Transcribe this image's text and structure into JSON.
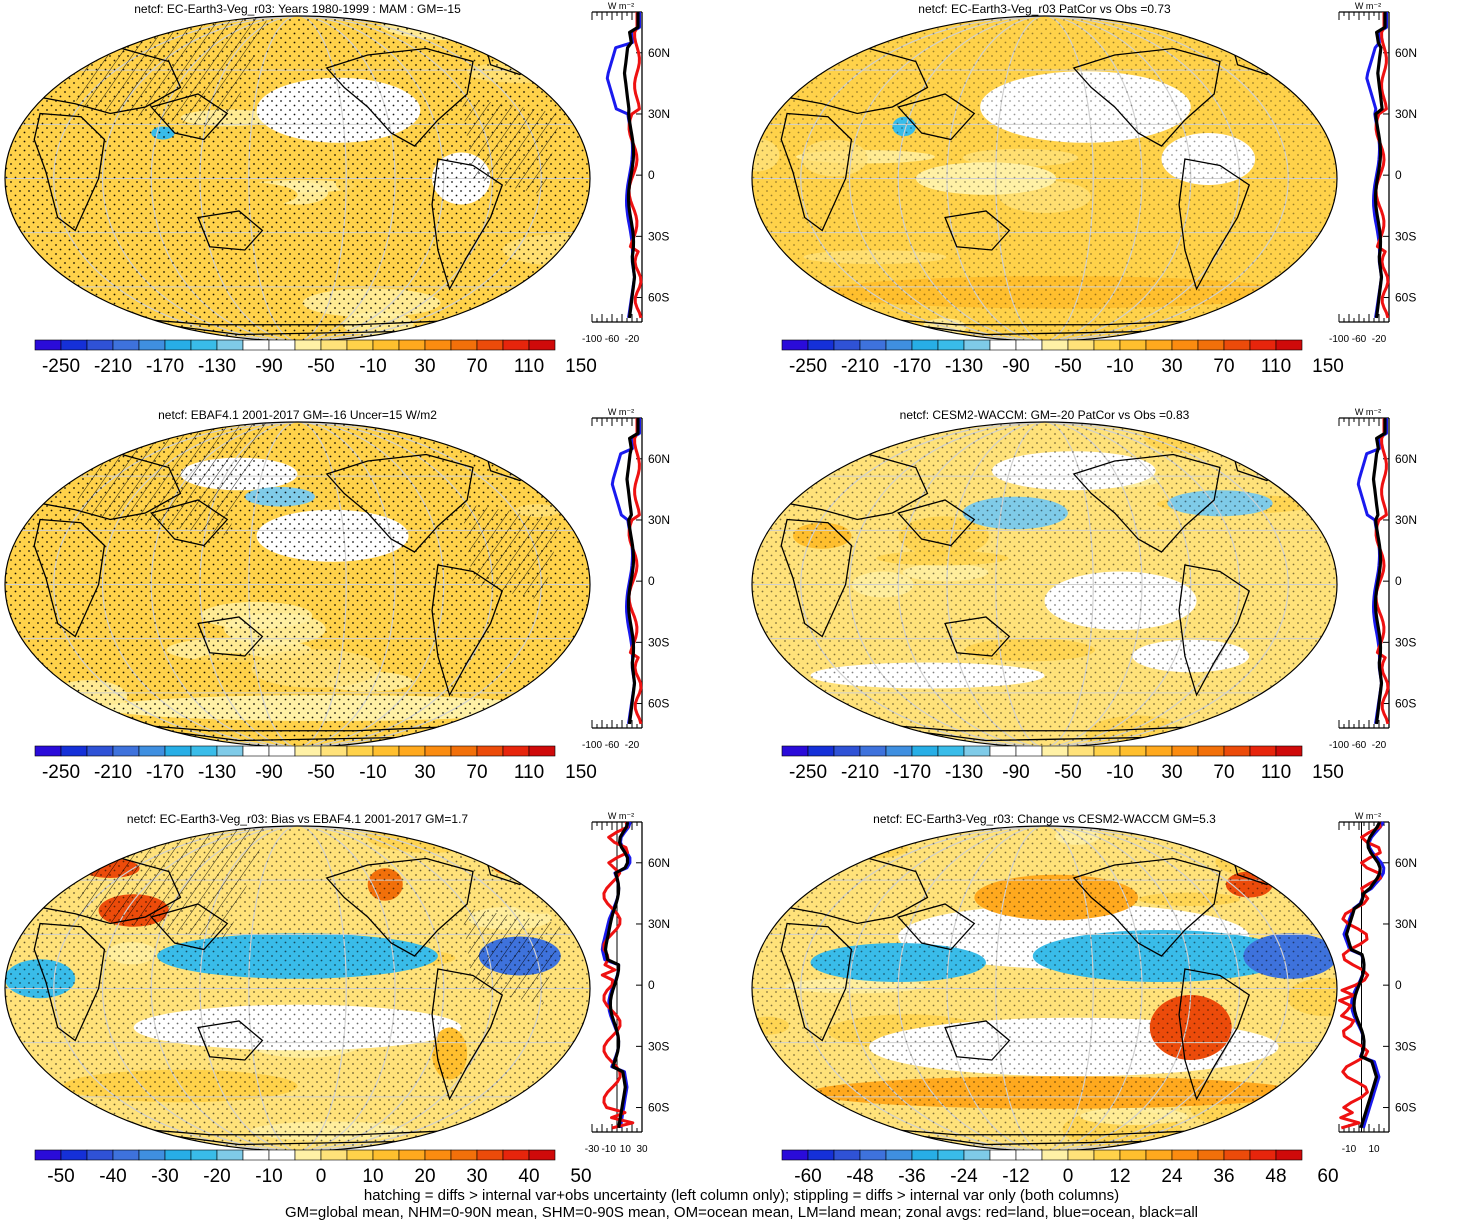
{
  "chart_data": [
    {
      "type": "heatmap",
      "title": "netcf: EC-Earth3-Veg_r03: Years 1980-1999 : MAM : GM=-15",
      "colorbar_ticks": [
        "-250",
        "-210",
        "-170",
        "-130",
        "-90",
        "-50",
        "-10",
        "30",
        "70",
        "110",
        "150"
      ],
      "zonal": {
        "unit": "W m⁻²",
        "xticks": [
          "-100",
          "-60",
          "-20"
        ],
        "xlim": [
          -100,
          0
        ],
        "lat_ticks": [
          "60N",
          "30N",
          "0",
          "30S",
          "60S"
        ],
        "zero_line": false
      }
    },
    {
      "type": "heatmap",
      "title": "netcf: EC-Earth3-Veg_r03 PatCor vs Obs =0.73",
      "colorbar_ticks": [
        "-250",
        "-210",
        "-170",
        "-130",
        "-90",
        "-50",
        "-10",
        "30",
        "70",
        "110",
        "150"
      ],
      "zonal": {
        "unit": "W m⁻²",
        "xticks": [
          "-100",
          "-60",
          "-20"
        ],
        "xlim": [
          -100,
          0
        ],
        "lat_ticks": [
          "60N",
          "30N",
          "0",
          "30S",
          "60S"
        ],
        "zero_line": false
      }
    },
    {
      "type": "heatmap",
      "title": "netcf: EBAF4.1 2001-2017 GM=-16 Uncer=15 W/m2",
      "colorbar_ticks": [
        "-250",
        "-210",
        "-170",
        "-130",
        "-90",
        "-50",
        "-10",
        "30",
        "70",
        "110",
        "150"
      ],
      "zonal": {
        "unit": "W m⁻²",
        "xticks": [
          "-100",
          "-60",
          "-20"
        ],
        "xlim": [
          -100,
          0
        ],
        "lat_ticks": [
          "60N",
          "30N",
          "0",
          "30S",
          "60S"
        ],
        "zero_line": false
      }
    },
    {
      "type": "heatmap",
      "title": "netcf: CESM2-WACCM: GM=-20 PatCor vs Obs =0.83",
      "colorbar_ticks": [
        "-250",
        "-210",
        "-170",
        "-130",
        "-90",
        "-50",
        "-10",
        "30",
        "70",
        "110",
        "150"
      ],
      "zonal": {
        "unit": "W m⁻²",
        "xticks": [
          "-100",
          "-60",
          "-20"
        ],
        "xlim": [
          -100,
          0
        ],
        "lat_ticks": [
          "60N",
          "30N",
          "0",
          "30S",
          "60S"
        ],
        "zero_line": false
      }
    },
    {
      "type": "heatmap",
      "title": "netcf: EC-Earth3-Veg_r03: Bias vs EBAF4.1 2001-2017 GM=1.7",
      "colorbar_ticks": [
        "-50",
        "-40",
        "-30",
        "-20",
        "-10",
        "0",
        "10",
        "20",
        "30",
        "40",
        "50"
      ],
      "zonal": {
        "unit": "W m⁻²",
        "xticks": [
          "-30",
          "-10",
          "10",
          "30"
        ],
        "xlim": [
          -30,
          30
        ],
        "lat_ticks": [
          "60N",
          "30N",
          "0",
          "30S",
          "60S"
        ],
        "zero_line": true
      }
    },
    {
      "type": "heatmap",
      "title": "netcf: EC-Earth3-Veg_r03: Change vs CESM2-WACCM GM=5.3",
      "colorbar_ticks": [
        "-60",
        "-48",
        "-36",
        "-24",
        "-12",
        "0",
        "12",
        "24",
        "36",
        "48",
        "60"
      ],
      "zonal": {
        "unit": "W m⁻²",
        "xticks": [
          "-10",
          "10"
        ],
        "xlim": [
          -18,
          22
        ],
        "lat_ticks": [
          "60N",
          "30N",
          "0",
          "30S",
          "60S"
        ],
        "zero_line": true
      }
    }
  ],
  "colors": {
    "zonal_land": "#ee1111",
    "zonal_ocean": "#1a1aee",
    "zonal_all": "#000000",
    "colorbar": [
      "#2a0bd9",
      "#1530d8",
      "#2f52d6",
      "#3e72dc",
      "#3f8fe0",
      "#27aee6",
      "#39bce9",
      "#7fcbe8",
      "#ffffff",
      "#ffffff",
      "#fff1a6",
      "#ffe27a",
      "#ffd24a",
      "#ffbf2e",
      "#ffa91e",
      "#fb8c10",
      "#f2700a",
      "#ec4b0a",
      "#e7250c",
      "#cf0a0a"
    ]
  },
  "footer": {
    "line1": "hatching = diffs > internal var+obs uncertainty (left column only); stippling = diffs > internal var only (both columns)",
    "line2": "GM=global mean, NHM=0-90N mean, SHM=0-90S mean, OM=ocean mean, LM=land mean; zonal avgs: red=land, blue=ocean, black=all"
  }
}
